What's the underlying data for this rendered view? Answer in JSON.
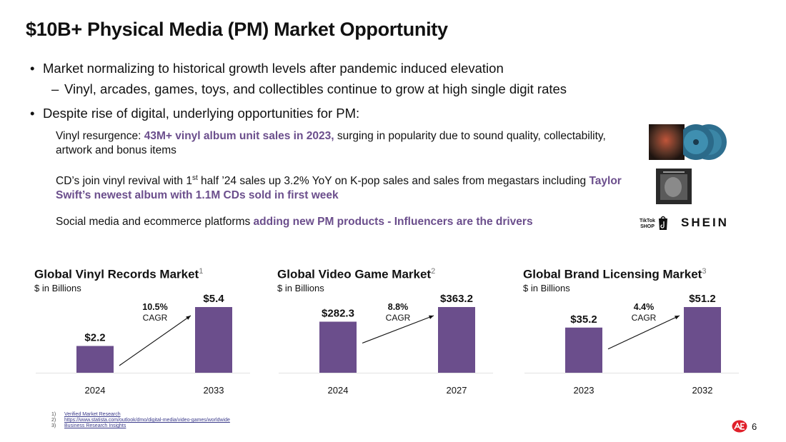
{
  "title": "$10B+ Physical Media (PM) Market Opportunity",
  "bullets": {
    "b1": "Market normalizing to historical growth levels after pandemic induced elevation",
    "b1_sub": "Vinyl, arcades, games, toys, and collectibles continue to grow at high single digit rates",
    "b2": "Despite rise of digital, underlying opportunities for PM:"
  },
  "paragraphs": {
    "p1_pre": "Vinyl resurgence: ",
    "p1_hl": "43M+ vinyl album unit sales in 2023,",
    "p1_post": " surging in popularity due to sound quality, collectability, artwork and bonus items",
    "p2_pre": "CD’s join vinyl revival with 1",
    "p2_sup": "st",
    "p2_mid": " half ’24 sales up 3.2% YoY on K-pop sales and sales from megastars including ",
    "p2_hl": "Taylor Swift’s newest album with 1.1M CDs sold in first week",
    "p3_pre": "Social media and ecommerce platforms ",
    "p3_hl": "adding new PM products - Influencers are the drivers"
  },
  "logos": {
    "tiktok_line1": "TikTok",
    "tiktok_line2": "SHOP",
    "shein": "SHEIN"
  },
  "colors": {
    "bar": "#6b4e8c",
    "highlight": "#6b4e8c",
    "accent_red": "#e0202a"
  },
  "chart_data": [
    {
      "type": "bar",
      "title": "Global Vinyl Records Market",
      "footnote_ref": "1",
      "ylabel": "$ in Billions",
      "categories": [
        "2024",
        "2033"
      ],
      "values": [
        2.2,
        5.4
      ],
      "labels": [
        "$2.2",
        "$5.4"
      ],
      "cagr": "10.5%",
      "cagr_label": "CAGR",
      "ylim": [
        0,
        5.4
      ]
    },
    {
      "type": "bar",
      "title": "Global Video Game Market",
      "footnote_ref": "2",
      "ylabel": "$ in Billions",
      "categories": [
        "2024",
        "2027"
      ],
      "values": [
        282.3,
        363.2
      ],
      "labels": [
        "$282.3",
        "$363.2"
      ],
      "cagr": "8.8%",
      "cagr_label": "CAGR",
      "ylim": [
        0,
        363.2
      ]
    },
    {
      "type": "bar",
      "title": "Global Brand Licensing Market",
      "footnote_ref": "3",
      "ylabel": "$ in Billions",
      "categories": [
        "2023",
        "2032"
      ],
      "values": [
        35.2,
        51.2
      ],
      "labels": [
        "$35.2",
        "$51.2"
      ],
      "cagr": "4.4%",
      "cagr_label": "CAGR",
      "ylim": [
        0,
        51.2
      ]
    }
  ],
  "footnotes": [
    {
      "num": "1)",
      "text": "Verified Market Research"
    },
    {
      "num": "2)",
      "text": "https://www.statista.com/outlook/dmo/digital-media/video-games/worldwide"
    },
    {
      "num": "3)",
      "text": "Business Research Insights"
    }
  ],
  "page_number": "6"
}
